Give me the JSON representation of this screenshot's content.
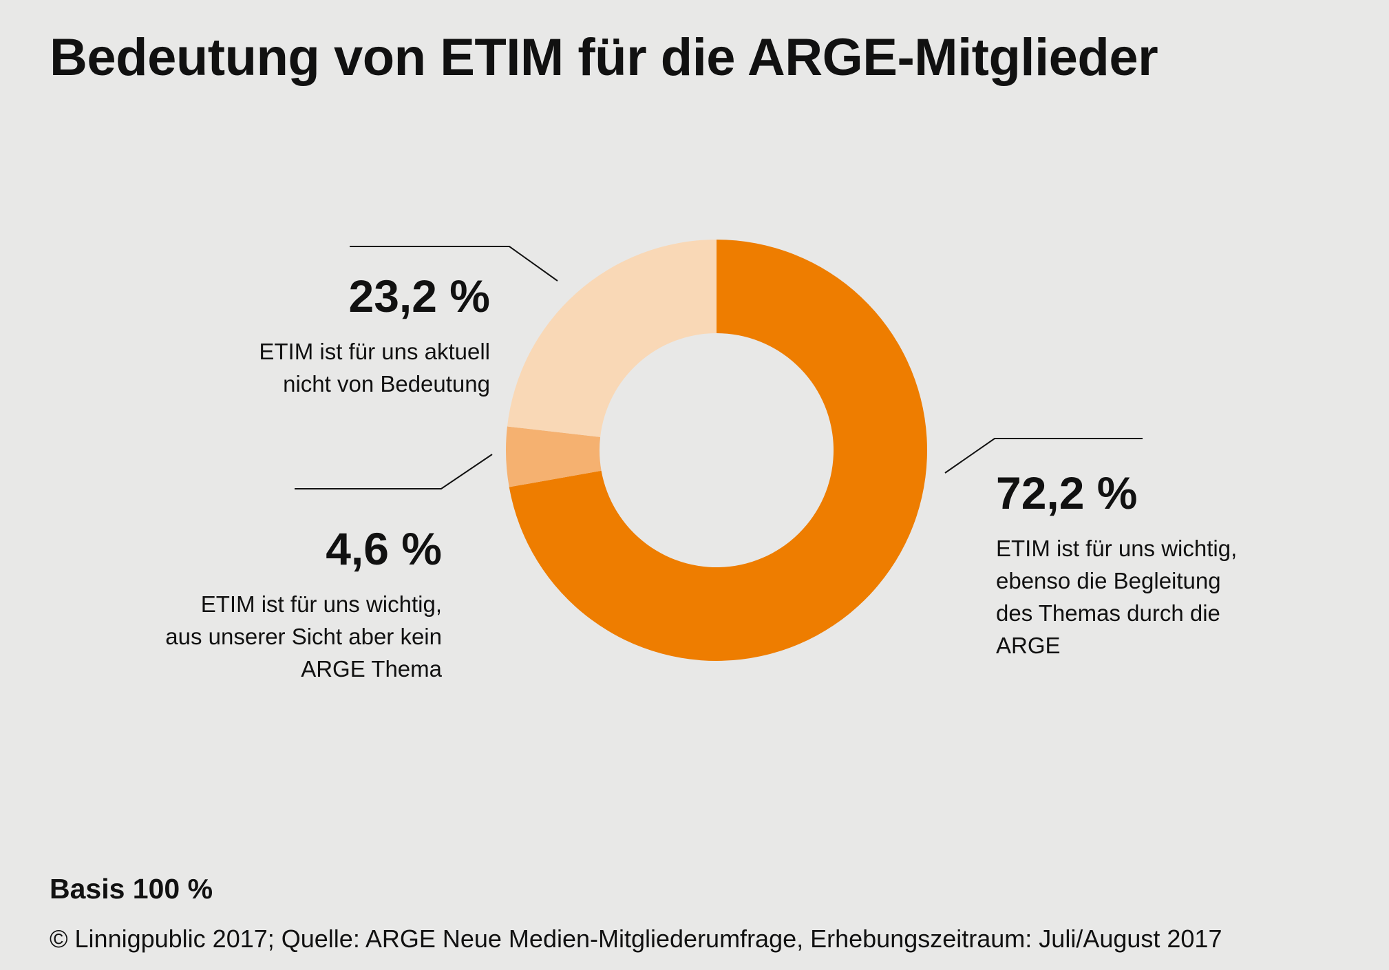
{
  "title": "Bedeutung von ETIM für die ARGE-Mitglieder",
  "chart_data": {
    "type": "pie",
    "variant": "donut",
    "slices": [
      {
        "value": 72.2,
        "label": "72,2 %",
        "description_lines": [
          "ETIM ist für uns wichtig,",
          "ebenso die Begleitung",
          "des Themas durch die",
          "ARGE"
        ],
        "color": "#ee7d00"
      },
      {
        "value": 4.6,
        "label": "4,6 %",
        "description_lines": [
          "ETIM ist für uns wichtig,",
          "aus unserer Sicht aber kein",
          "ARGE Thema"
        ],
        "color": "#f5b170"
      },
      {
        "value": 23.2,
        "label": "23,2 %",
        "description_lines": [
          "ETIM ist für uns aktuell",
          "nicht von Bedeutung"
        ],
        "color": "#f9d8b6"
      }
    ],
    "start": "12 o'clock, clockwise"
  },
  "footer": {
    "basis": "Basis 100 %",
    "source": "© Linnigpublic 2017; Quelle: ARGE Neue Medien-Mitgliederumfrage, Erhebungszeitraum: Juli/August 2017"
  },
  "colors": {
    "background": "#e8e8e7",
    "text": "#111111"
  }
}
